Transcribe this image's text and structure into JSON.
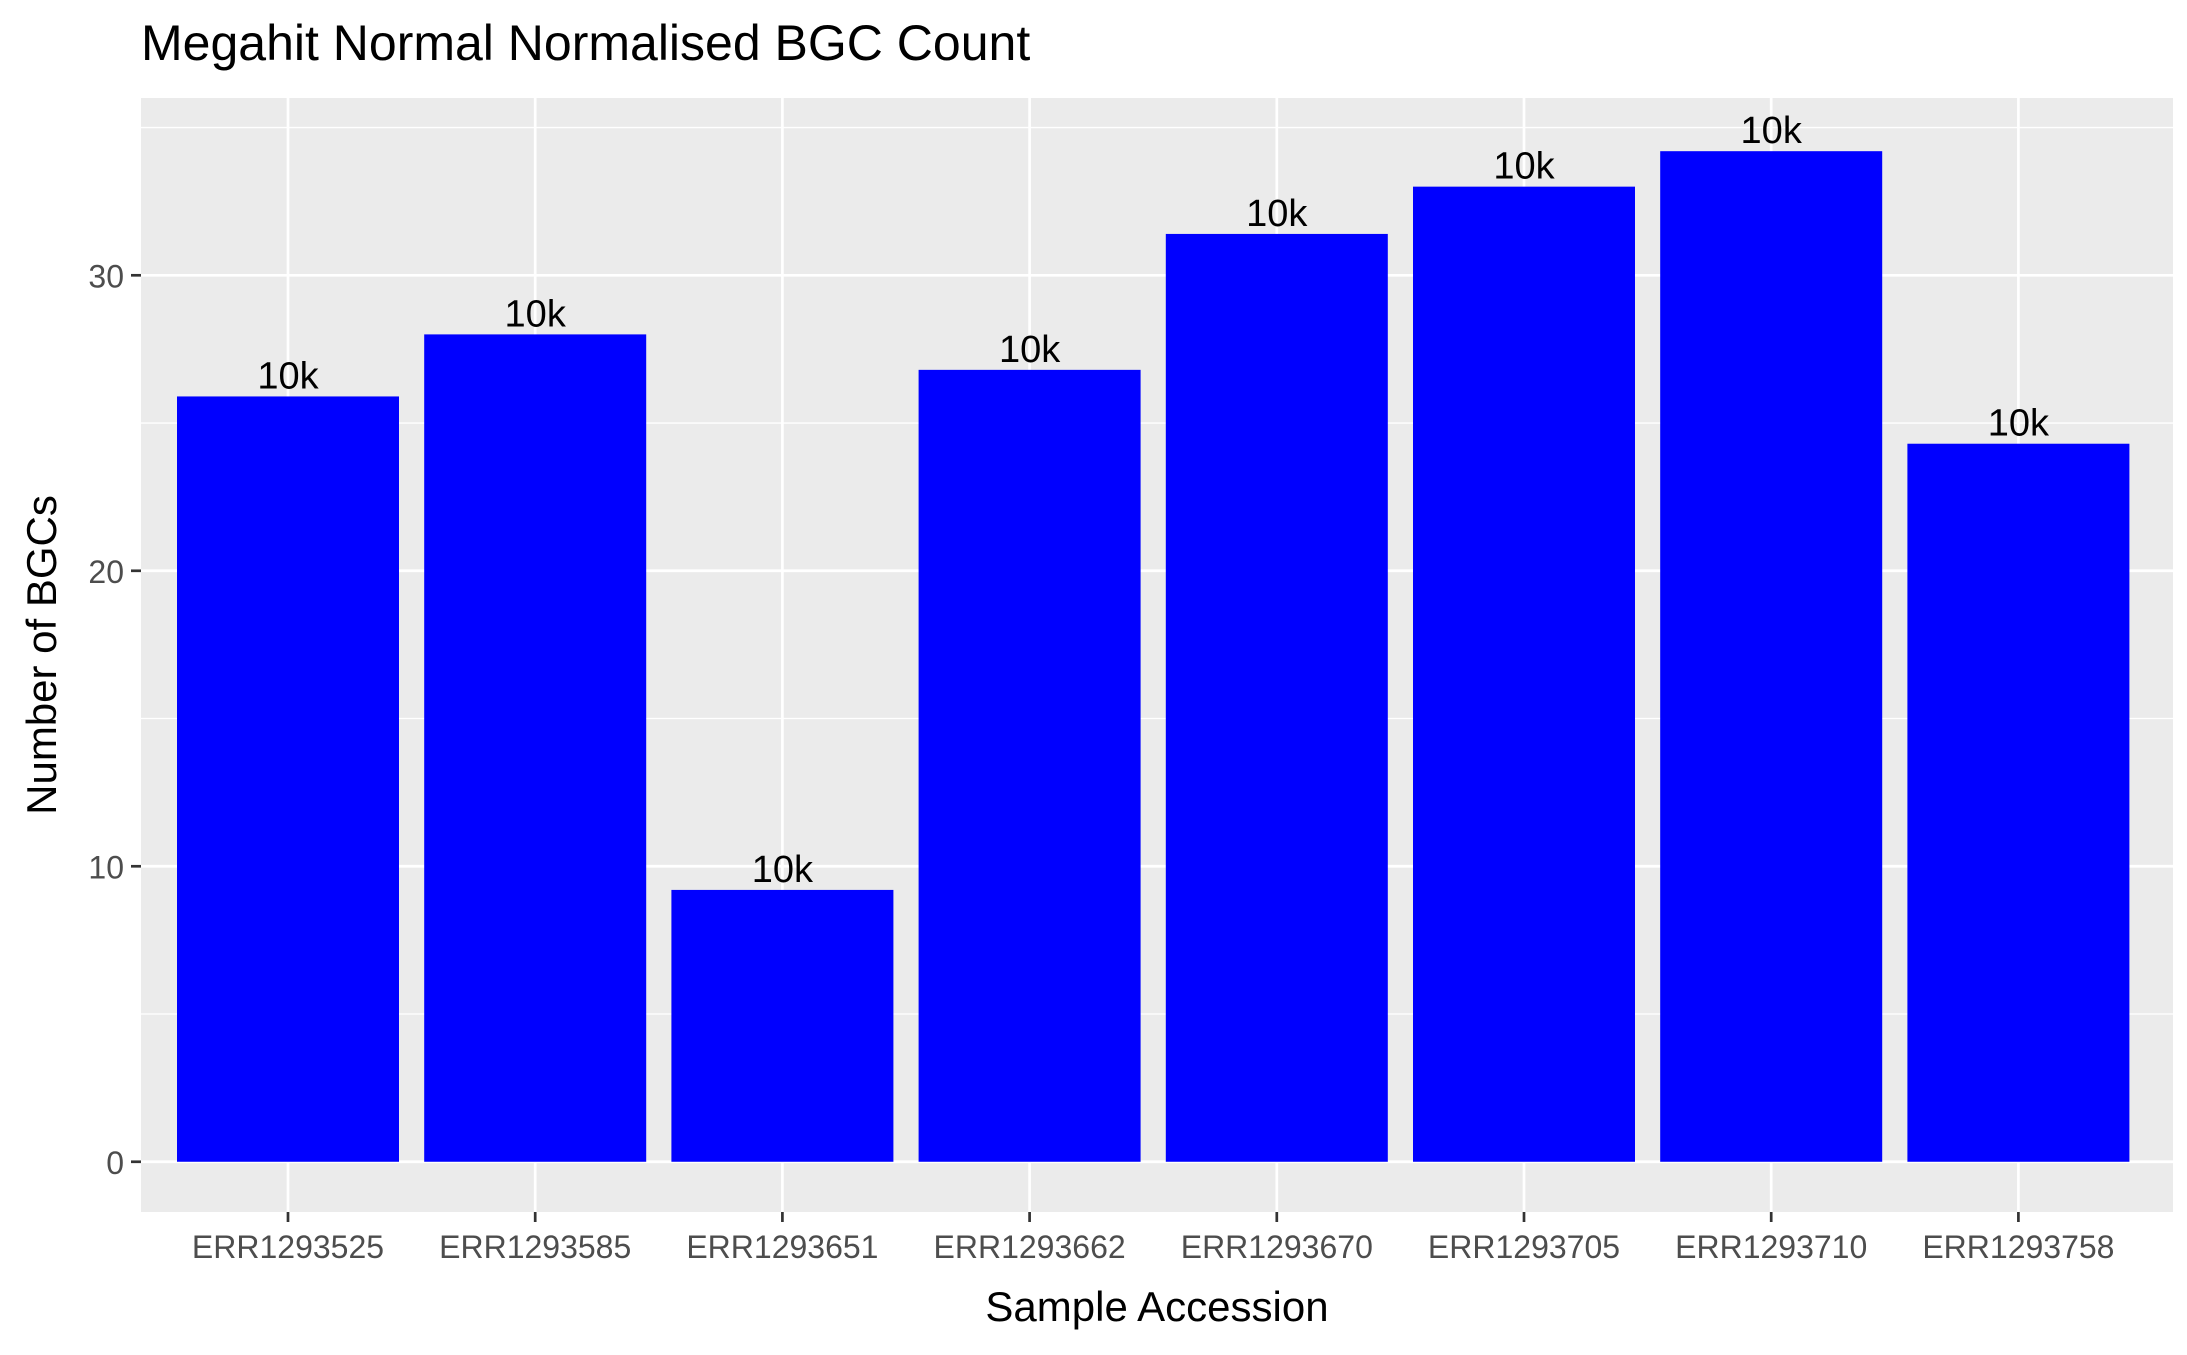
{
  "chart_data": {
    "type": "bar",
    "title": "Megahit Normal Normalised BGC Count",
    "xlabel": "Sample Accession",
    "ylabel": "Number of BGCs",
    "categories": [
      "ERR1293525",
      "ERR1293585",
      "ERR1293651",
      "ERR1293662",
      "ERR1293670",
      "ERR1293705",
      "ERR1293710",
      "ERR1293758"
    ],
    "values": [
      25.9,
      28.0,
      9.2,
      26.8,
      31.4,
      33.0,
      34.2,
      24.3
    ],
    "data_labels": [
      "10k",
      "10k",
      "10k",
      "10k",
      "10k",
      "10k",
      "10k",
      "10k"
    ],
    "ylim": [
      -1.7,
      36.0
    ],
    "yticks": [
      0,
      10,
      20,
      30
    ],
    "grid": true,
    "legend": "none",
    "colors": {
      "bar": "#0000FF",
      "panel": "#EBEBEB",
      "grid": "#FFFFFF",
      "text": "#000000",
      "tick_text": "#4D4D4D",
      "tick_mark": "#333333"
    }
  }
}
